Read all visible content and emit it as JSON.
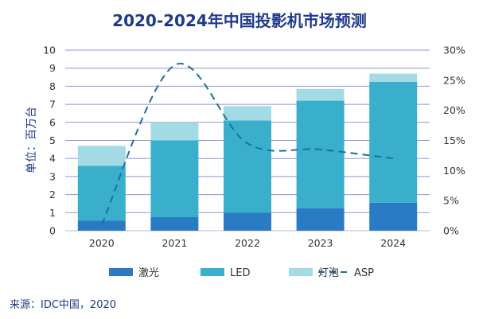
{
  "chart_data": {
    "type": "bar",
    "stacked": true,
    "title": "2020-2024年中国投影机市场预测",
    "ylabel": "单位：百万台",
    "categories": [
      "2020",
      "2021",
      "2022",
      "2023",
      "2024"
    ],
    "ylim": [
      0,
      10
    ],
    "yticks": [
      "0",
      "1",
      "2",
      "3",
      "4",
      "5",
      "6",
      "7",
      "8",
      "9",
      "10"
    ],
    "y2lim": [
      0,
      30
    ],
    "y2ticks": [
      "0%",
      "5%",
      "10%",
      "15%",
      "20%",
      "25%",
      "30%"
    ],
    "grid": true,
    "legend_position": "bottom",
    "series": [
      {
        "name": "激光",
        "color": "#2a7bc4",
        "values": [
          0.55,
          0.75,
          1.0,
          1.25,
          1.55
        ]
      },
      {
        "name": "LED",
        "color": "#3aafcb",
        "values": [
          3.05,
          4.25,
          5.1,
          5.95,
          6.7
        ]
      },
      {
        "name": "灯泡",
        "color": "#a3dbe5",
        "values": [
          1.1,
          1.0,
          0.8,
          0.65,
          0.45
        ]
      }
    ],
    "line_series": {
      "name": "ASP",
      "color": "#1e6f9c",
      "style": "dashed",
      "axis": "right",
      "values": [
        1,
        27.5,
        14.5,
        13.5,
        12
      ]
    },
    "source": "来源：IDC中国，2020"
  }
}
